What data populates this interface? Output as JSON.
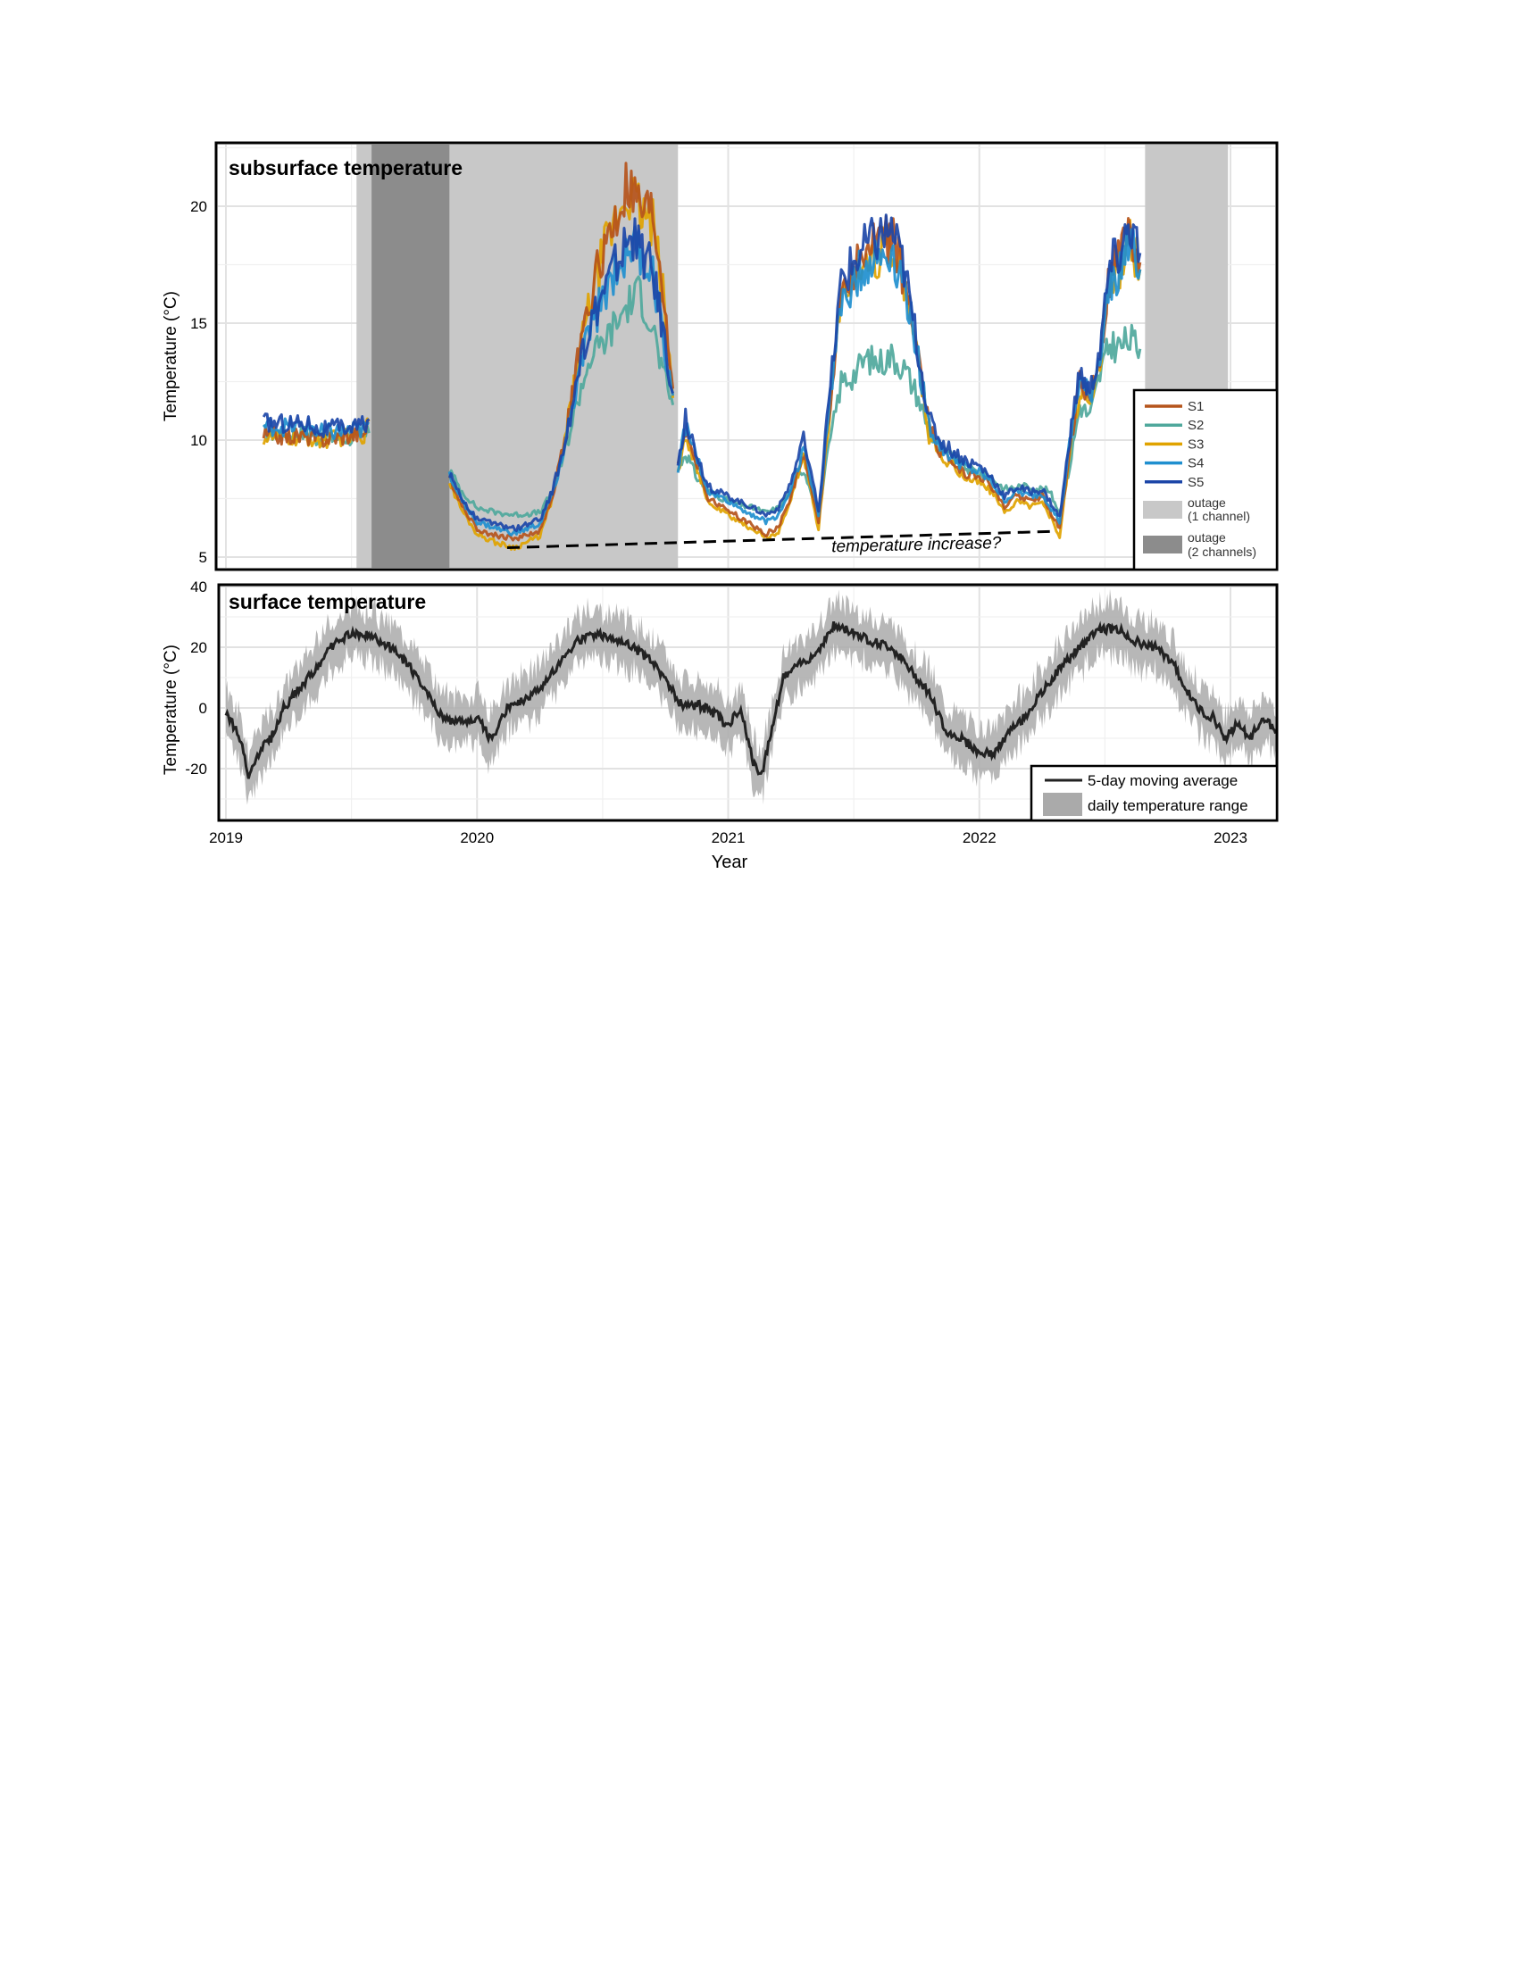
{
  "chart_data": [
    {
      "type": "line",
      "title": "subsurface temperature",
      "ylabel": "Temperature (°C)",
      "xlabel": "",
      "xlim": [
        2019.0,
        2023.2
      ],
      "ylim": [
        4.7,
        22.5
      ],
      "yticks": [
        5,
        10,
        15,
        20
      ],
      "grid": true,
      "legend_position": "bottom-right",
      "series": [
        {
          "name": "S1",
          "color": "#b5541c",
          "offset": 0.0
        },
        {
          "name": "S2",
          "color": "#4fa89c",
          "offset": 0.0
        },
        {
          "name": "S3",
          "color": "#e0a300",
          "offset": 0.0
        },
        {
          "name": "S4",
          "color": "#1f8fcf",
          "offset": 0.0
        },
        {
          "name": "S5",
          "color": "#1c46a8",
          "offset": 0.0
        }
      ],
      "segments": [
        {
          "x": [
            2019.15,
            2019.35,
            2019.36,
            2019.55,
            2019.57
          ],
          "S1": [
            10.2,
            10.15,
            10.0,
            10.3,
            10.8
          ],
          "S2": [
            10.3,
            10.3,
            10.1,
            10.1,
            10.3
          ],
          "S3": [
            10.1,
            10.05,
            9.95,
            10.25,
            10.8
          ],
          "S4": [
            10.6,
            10.55,
            10.3,
            10.45,
            10.7
          ],
          "S5": [
            10.75,
            10.7,
            10.4,
            10.65,
            10.9
          ]
        },
        {
          "x": [
            2019.89,
            2019.94,
            2020.0,
            2020.08,
            2020.15,
            2020.25,
            2020.3,
            2020.35,
            2020.4,
            2020.45,
            2020.5,
            2020.55,
            2020.6,
            2020.65,
            2020.7,
            2020.74,
            2020.78
          ],
          "S1": [
            8.4,
            7.2,
            6.2,
            5.9,
            5.8,
            6.1,
            7.6,
            10.0,
            13.3,
            16.0,
            18.0,
            19.2,
            20.8,
            19.7,
            19.5,
            16.5,
            12.2
          ],
          "S2": [
            8.7,
            7.8,
            7.1,
            6.9,
            6.8,
            6.9,
            7.8,
            9.5,
            11.7,
            13.5,
            14.1,
            14.9,
            15.8,
            16.3,
            14.8,
            12.8,
            11.5
          ],
          "S3": [
            8.2,
            7.0,
            6.0,
            5.6,
            5.4,
            5.9,
            7.5,
            10.0,
            13.2,
            15.9,
            17.9,
            19.3,
            20.7,
            19.8,
            19.2,
            16.2,
            11.8
          ],
          "S4": [
            8.5,
            7.4,
            6.5,
            6.2,
            6.0,
            6.4,
            7.7,
            9.8,
            12.4,
            14.8,
            16.0,
            17.2,
            18.3,
            18.0,
            17.0,
            14.6,
            11.9
          ],
          "S5": [
            8.6,
            7.5,
            6.6,
            6.4,
            6.2,
            6.6,
            7.8,
            9.9,
            12.6,
            15.0,
            16.3,
            17.5,
            18.6,
            18.2,
            17.2,
            14.8,
            12.0
          ]
        },
        {
          "x": [
            2020.8,
            2020.83,
            2020.87,
            2020.92,
            2021.0,
            2021.06,
            2021.1,
            2021.15,
            2021.2,
            2021.25,
            2021.3,
            2021.36,
            2021.4,
            2021.45,
            2021.5,
            2021.55,
            2021.6,
            2021.65,
            2021.7,
            2021.75,
            2021.8,
            2021.85,
            2021.9,
            2021.95,
            2022.0,
            2022.05,
            2022.1,
            2022.15,
            2022.2,
            2022.25,
            2022.28,
            2022.32,
            2022.36,
            2022.4,
            2022.44,
            2022.48,
            2022.52,
            2022.56,
            2022.6,
            2022.64
          ],
          "S1": [
            8.8,
            10.5,
            9.2,
            7.5,
            7.0,
            6.6,
            6.3,
            6.0,
            6.3,
            7.6,
            9.5,
            6.5,
            11.0,
            16.5,
            17.3,
            18.0,
            18.3,
            18.6,
            17.0,
            14.0,
            10.5,
            9.4,
            9.0,
            8.6,
            8.5,
            8.0,
            7.1,
            7.7,
            7.4,
            7.6,
            7.0,
            6.2,
            9.6,
            12.5,
            11.6,
            13.5,
            17.0,
            17.7,
            18.7,
            17.6
          ],
          "S2": [
            8.7,
            9.5,
            8.5,
            7.8,
            7.4,
            7.2,
            7.1,
            6.9,
            7.1,
            7.8,
            8.8,
            6.9,
            9.6,
            12.5,
            12.8,
            13.5,
            13.3,
            13.6,
            13.1,
            12.0,
            10.4,
            9.5,
            9.2,
            8.8,
            8.6,
            8.4,
            7.9,
            8.0,
            8.0,
            7.9,
            7.8,
            6.9,
            8.9,
            11.5,
            11.0,
            12.8,
            14.1,
            14.0,
            14.3,
            13.9
          ],
          "S3": [
            8.6,
            10.3,
            9.0,
            7.3,
            6.8,
            6.4,
            6.2,
            5.8,
            6.1,
            7.4,
            9.4,
            6.2,
            10.8,
            16.3,
            17.0,
            17.8,
            18.0,
            18.4,
            16.8,
            13.8,
            10.2,
            9.2,
            8.8,
            8.4,
            8.2,
            7.8,
            6.9,
            7.4,
            7.2,
            7.3,
            6.8,
            5.9,
            9.4,
            12.2,
            11.4,
            13.3,
            16.8,
            17.4,
            18.4,
            17.3
          ],
          "S4": [
            8.8,
            10.6,
            9.4,
            7.8,
            7.4,
            7.0,
            6.8,
            6.5,
            6.8,
            7.9,
            9.7,
            6.8,
            11.2,
            16.2,
            16.8,
            17.5,
            17.8,
            18.1,
            16.7,
            13.9,
            10.6,
            9.6,
            9.2,
            8.8,
            8.6,
            8.2,
            7.4,
            7.8,
            7.6,
            7.7,
            7.2,
            6.5,
            9.8,
            12.6,
            11.8,
            13.6,
            16.8,
            17.4,
            18.4,
            17.3
          ],
          "S5": [
            9.0,
            10.9,
            9.6,
            8.0,
            7.6,
            7.3,
            7.1,
            6.8,
            7.1,
            8.2,
            10.0,
            7.0,
            11.5,
            16.8,
            17.6,
            18.3,
            18.7,
            19.0,
            17.4,
            14.3,
            10.9,
            9.9,
            9.5,
            9.1,
            8.9,
            8.4,
            7.6,
            8.0,
            7.8,
            7.9,
            7.4,
            6.7,
            10.0,
            12.9,
            12.0,
            13.9,
            17.4,
            18.0,
            19.2,
            18.0
          ]
        }
      ],
      "shaded_regions": [
        {
          "kind": "1ch",
          "x0": 2019.52,
          "x1": 2020.8
        },
        {
          "kind": "1ch",
          "x0": 2022.66,
          "x1": 2022.99
        },
        {
          "kind": "2ch",
          "x0": 2019.58,
          "x1": 2019.89
        }
      ],
      "annotation": {
        "text": "temperature increase?",
        "line_x": [
          2020.12,
          2022.3
        ],
        "line_y": [
          5.4,
          6.1
        ],
        "text_x": 2021.75,
        "text_y": 5.3
      },
      "legend": {
        "outage_1": "outage\n(1 channel)",
        "outage_2": "outage\n(2 channels)",
        "outage_1_color": "#c8c8c8",
        "outage_2_color": "#8c8c8c"
      }
    },
    {
      "type": "line",
      "title": "surface temperature",
      "ylabel": "Temperature (°C)",
      "xlabel": "Year",
      "xlim": [
        2019.0,
        2023.2
      ],
      "ylim": [
        -37,
        40
      ],
      "yticks": [
        -20,
        0,
        20,
        40
      ],
      "xticks": [
        "2019",
        "2020",
        "2021",
        "2022",
        "2023"
      ],
      "grid": true,
      "legend_position": "bottom-right",
      "series": [
        {
          "name": "5-day moving average",
          "color": "#222222"
        },
        {
          "name": "daily temperature range",
          "color": "#aaaaaa"
        }
      ],
      "x": [
        2019.0,
        2019.05,
        2019.09,
        2019.14,
        2019.18,
        2019.23,
        2019.28,
        2019.35,
        2019.42,
        2019.5,
        2019.57,
        2019.65,
        2019.72,
        2019.8,
        2019.86,
        2019.92,
        2020.0,
        2020.06,
        2020.12,
        2020.18,
        2020.25,
        2020.32,
        2020.4,
        2020.47,
        2020.55,
        2020.62,
        2020.7,
        2020.76,
        2020.82,
        2020.88,
        2020.95,
        2021.0,
        2021.05,
        2021.1,
        2021.13,
        2021.17,
        2021.22,
        2021.28,
        2021.35,
        2021.42,
        2021.5,
        2021.57,
        2021.65,
        2021.72,
        2021.8,
        2021.87,
        2021.93,
        2022.0,
        2022.06,
        2022.12,
        2022.18,
        2022.25,
        2022.32,
        2022.4,
        2022.47,
        2022.55,
        2022.62,
        2022.7,
        2022.77,
        2022.83,
        2022.88,
        2022.93,
        2022.98,
        2023.03,
        2023.08,
        2023.13,
        2023.18
      ],
      "avg": [
        -2,
        -8,
        -22,
        -13,
        -10,
        0,
        5,
        12,
        20,
        25,
        24,
        20,
        15,
        5,
        -3,
        -5,
        -3,
        -11,
        0,
        2,
        6,
        14,
        22,
        24,
        23,
        20,
        15,
        8,
        0,
        1,
        -2,
        -6,
        0,
        -18,
        -23,
        -8,
        10,
        14,
        18,
        27,
        25,
        22,
        20,
        13,
        5,
        -8,
        -10,
        -15,
        -15,
        -8,
        -3,
        5,
        13,
        20,
        26,
        26,
        22,
        20,
        15,
        5,
        -1,
        -3,
        -10,
        -5,
        -10,
        -3,
        -8
      ],
      "spread": 8,
      "legend_title": ""
    }
  ]
}
